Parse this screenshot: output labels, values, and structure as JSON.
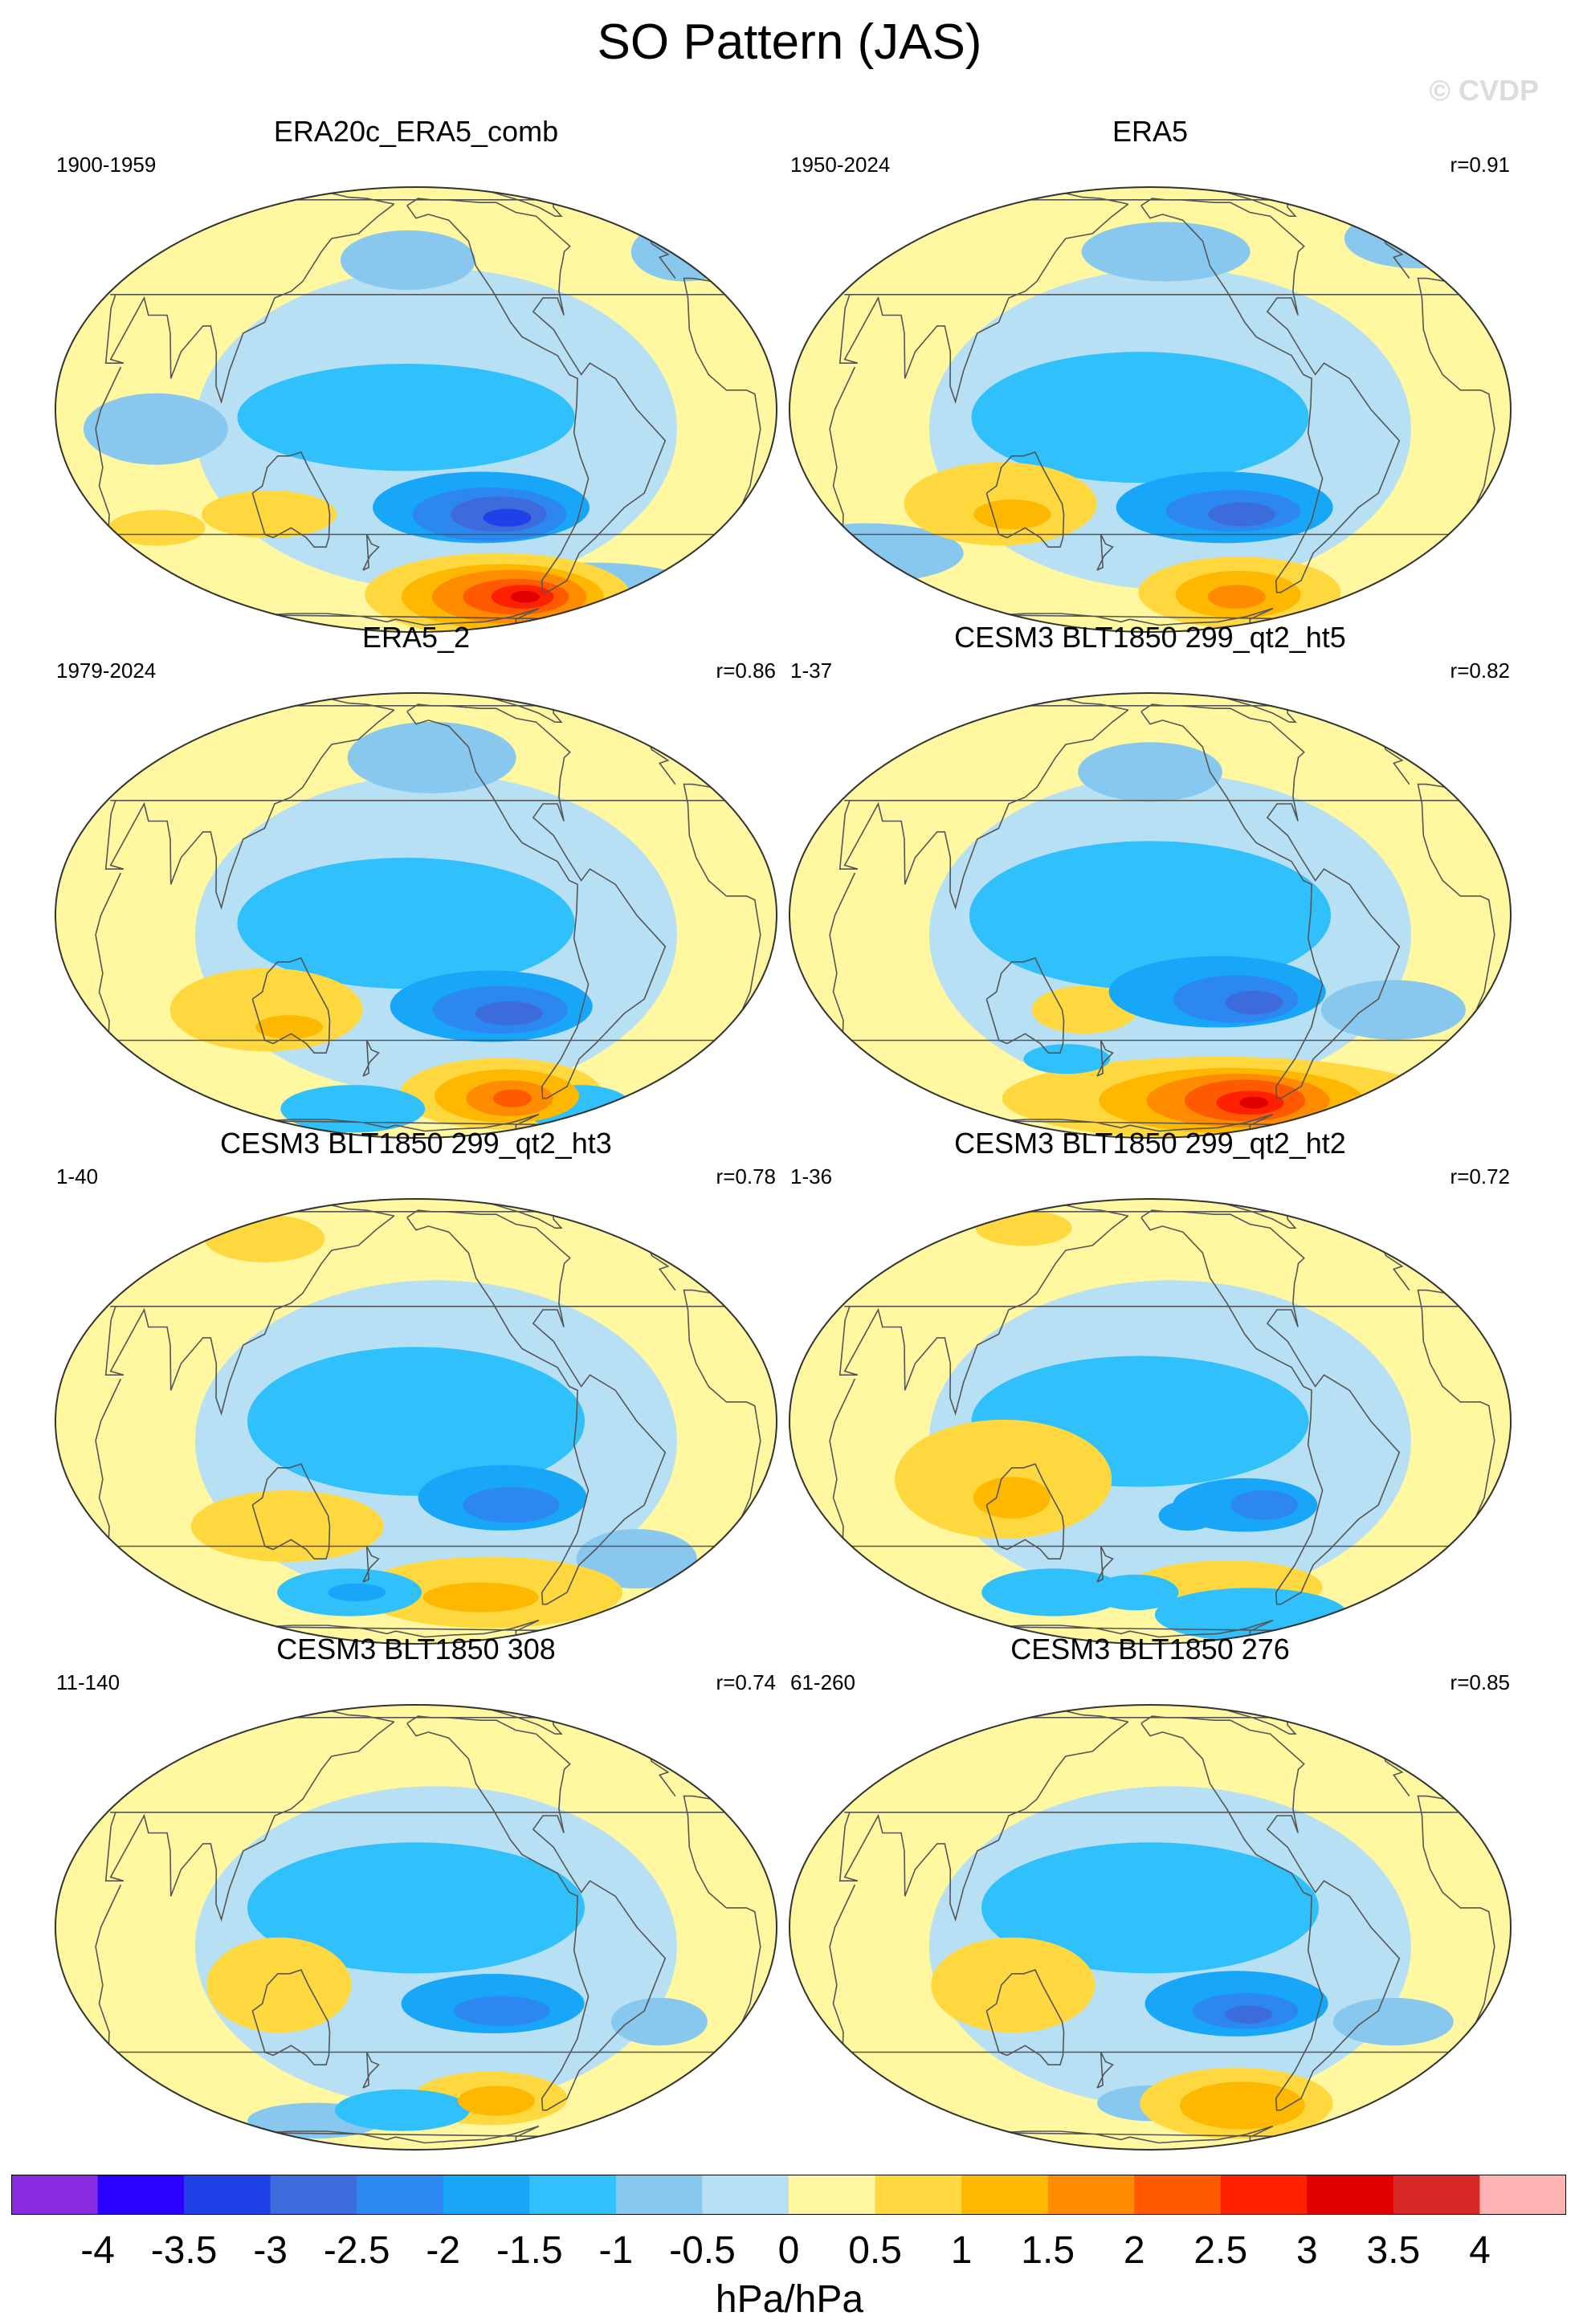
{
  "title": "SO Pattern (JAS)",
  "watermark": "© CVDP",
  "panels": [
    {
      "title": "ERA20c_ERA5_comb",
      "period": "1900-1959",
      "corr": "",
      "blobs": [
        {
          "lon": -165,
          "lat": -2,
          "rx": 70,
          "ry": 18,
          "c": "-1"
        },
        {
          "lon": -125,
          "lat": -26,
          "rx": 45,
          "ry": 12,
          "c": "-1.5"
        },
        {
          "lon": -120,
          "lat": -28,
          "rx": 32,
          "ry": 9,
          "c": "-2"
        },
        {
          "lon": -115,
          "lat": -28,
          "rx": 20,
          "ry": 6,
          "c": "-2.5"
        },
        {
          "lon": -110,
          "lat": -29,
          "rx": 10,
          "ry": 3,
          "c": "-3"
        },
        {
          "lon": -100,
          "lat": -56,
          "rx": 55,
          "ry": 14,
          "c": "1"
        },
        {
          "lon": -95,
          "lat": -57,
          "rx": 42,
          "ry": 11,
          "c": "1.5"
        },
        {
          "lon": -90,
          "lat": -57,
          "rx": 32,
          "ry": 9,
          "c": "2"
        },
        {
          "lon": -85,
          "lat": -57,
          "rx": 22,
          "ry": 6,
          "c": "2.5"
        },
        {
          "lon": -80,
          "lat": -57,
          "rx": 13,
          "ry": 4,
          "c": "3"
        },
        {
          "lon": -78,
          "lat": -57,
          "rx": 6,
          "ry": 2,
          "c": "3.5"
        },
        {
          "lon": 120,
          "lat": -28,
          "rx": 28,
          "ry": 8,
          "c": "1"
        },
        {
          "lon": 55,
          "lat": -32,
          "rx": 20,
          "ry": 6,
          "c": "1"
        },
        {
          "lon": -30,
          "lat": -55,
          "rx": 45,
          "ry": 10,
          "c": "-0.5"
        },
        {
          "lon": -165,
          "lat": 42,
          "rx": 28,
          "ry": 10,
          "c": "-0.5"
        },
        {
          "lon": 10,
          "lat": 45,
          "rx": 22,
          "ry": 10,
          "c": "-0.5"
        },
        {
          "lon": 70,
          "lat": -5,
          "rx": 30,
          "ry": 12,
          "c": "-0.5"
        }
      ]
    },
    {
      "title": "ERA5",
      "period": "1950-2024",
      "corr": "r=0.91",
      "blobs": [
        {
          "lon": -165,
          "lat": -2,
          "rx": 70,
          "ry": 22,
          "c": "-1"
        },
        {
          "lon": -120,
          "lat": -26,
          "rx": 45,
          "ry": 12,
          "c": "-1.5"
        },
        {
          "lon": -115,
          "lat": -27,
          "rx": 28,
          "ry": 7,
          "c": "-2"
        },
        {
          "lon": -110,
          "lat": -28,
          "rx": 14,
          "ry": 4,
          "c": "-2.5"
        },
        {
          "lon": -95,
          "lat": -55,
          "rx": 42,
          "ry": 12,
          "c": "1"
        },
        {
          "lon": -95,
          "lat": -56,
          "rx": 26,
          "ry": 8,
          "c": "1.5"
        },
        {
          "lon": -95,
          "lat": -57,
          "rx": 12,
          "ry": 4,
          "c": "2"
        },
        {
          "lon": 120,
          "lat": -25,
          "rx": 40,
          "ry": 14,
          "c": "1"
        },
        {
          "lon": 125,
          "lat": -28,
          "rx": 16,
          "ry": 5,
          "c": "1.5"
        },
        {
          "lon": 30,
          "lat": -40,
          "rx": 40,
          "ry": 10,
          "c": "-0.5"
        },
        {
          "lon": -150,
          "lat": 45,
          "rx": 35,
          "ry": 10,
          "c": "-0.5"
        },
        {
          "lon": 20,
          "lat": 50,
          "rx": 30,
          "ry": 10,
          "c": "-0.5"
        }
      ]
    },
    {
      "title": "ERA5_2",
      "period": "1979-2024",
      "corr": "r=0.86",
      "blobs": [
        {
          "lon": -165,
          "lat": -2,
          "rx": 70,
          "ry": 22,
          "c": "-1"
        },
        {
          "lon": -120,
          "lat": -24,
          "rx": 42,
          "ry": 12,
          "c": "-1.5"
        },
        {
          "lon": -115,
          "lat": -25,
          "rx": 28,
          "ry": 8,
          "c": "-2"
        },
        {
          "lon": -110,
          "lat": -26,
          "rx": 14,
          "ry": 4,
          "c": "-2.5"
        },
        {
          "lon": -100,
          "lat": -53,
          "rx": 42,
          "ry": 12,
          "c": "1"
        },
        {
          "lon": -95,
          "lat": -54,
          "rx": 30,
          "ry": 9,
          "c": "1.5"
        },
        {
          "lon": -92,
          "lat": -55,
          "rx": 18,
          "ry": 6,
          "c": "2"
        },
        {
          "lon": -90,
          "lat": -55,
          "rx": 8,
          "ry": 3,
          "c": "2.5"
        },
        {
          "lon": 120,
          "lat": -25,
          "rx": 40,
          "ry": 14,
          "c": "1"
        },
        {
          "lon": 130,
          "lat": -30,
          "rx": 14,
          "ry": 4,
          "c": "1.5"
        },
        {
          "lon": 150,
          "lat": -60,
          "rx": 30,
          "ry": 8,
          "c": "-1"
        },
        {
          "lon": -30,
          "lat": -60,
          "rx": 22,
          "ry": 8,
          "c": "-1"
        },
        {
          "lon": -150,
          "lat": 45,
          "rx": 35,
          "ry": 12,
          "c": "-0.5"
        }
      ]
    },
    {
      "title": "CESM3 BLT1850 299_qt2_ht5",
      "period": "1-37",
      "corr": "r=0.82",
      "blobs": [
        {
          "lon": -160,
          "lat": 0,
          "rx": 75,
          "ry": 25,
          "c": "-1"
        },
        {
          "lon": -125,
          "lat": -20,
          "rx": 45,
          "ry": 12,
          "c": "-1.5"
        },
        {
          "lon": -115,
          "lat": -22,
          "rx": 26,
          "ry": 8,
          "c": "-2"
        },
        {
          "lon": -105,
          "lat": -23,
          "rx": 12,
          "ry": 4,
          "c": "-2.5"
        },
        {
          "lon": -110,
          "lat": -55,
          "rx": 90,
          "ry": 14,
          "c": "1"
        },
        {
          "lon": -100,
          "lat": -56,
          "rx": 55,
          "ry": 11,
          "c": "1.5"
        },
        {
          "lon": -95,
          "lat": -56,
          "rx": 38,
          "ry": 9,
          "c": "2"
        },
        {
          "lon": -90,
          "lat": -56,
          "rx": 25,
          "ry": 7,
          "c": "2.5"
        },
        {
          "lon": -85,
          "lat": -57,
          "rx": 14,
          "ry": 4,
          "c": "3"
        },
        {
          "lon": -82,
          "lat": -57,
          "rx": 6,
          "ry": 2,
          "c": "3.5"
        },
        {
          "lon": 165,
          "lat": -25,
          "rx": 22,
          "ry": 8,
          "c": "1"
        },
        {
          "lon": 150,
          "lat": -40,
          "rx": 18,
          "ry": 5,
          "c": "-1"
        },
        {
          "lon": -30,
          "lat": -25,
          "rx": 30,
          "ry": 10,
          "c": "-0.5"
        },
        {
          "lon": -160,
          "lat": 40,
          "rx": 30,
          "ry": 10,
          "c": "-0.5"
        }
      ]
    },
    {
      "title": "CESM3 BLT1850 299_qt2_ht3",
      "period": "1-40",
      "corr": "r=0.78",
      "blobs": [
        {
          "lon": -160,
          "lat": 0,
          "rx": 70,
          "ry": 25,
          "c": "-1"
        },
        {
          "lon": -115,
          "lat": -20,
          "rx": 35,
          "ry": 11,
          "c": "-1.5"
        },
        {
          "lon": -110,
          "lat": -22,
          "rx": 20,
          "ry": 6,
          "c": "-2"
        },
        {
          "lon": -110,
          "lat": -50,
          "rx": 55,
          "ry": 12,
          "c": "1"
        },
        {
          "lon": -115,
          "lat": -52,
          "rx": 24,
          "ry": 5,
          "c": "1.5"
        },
        {
          "lon": 130,
          "lat": -28,
          "rx": 40,
          "ry": 12,
          "c": "1"
        },
        {
          "lon": 155,
          "lat": -50,
          "rx": 30,
          "ry": 8,
          "c": "-1"
        },
        {
          "lon": 160,
          "lat": -50,
          "rx": 12,
          "ry": 3,
          "c": "-1.5"
        },
        {
          "lon": -30,
          "lat": -38,
          "rx": 25,
          "ry": 10,
          "c": "-0.5"
        },
        {
          "lon": 90,
          "lat": 55,
          "rx": 25,
          "ry": 8,
          "c": "1"
        }
      ]
    },
    {
      "title": "CESM3 BLT1850 299_qt2_ht2",
      "period": "1-36",
      "corr": "r=0.72",
      "blobs": [
        {
          "lon": -165,
          "lat": 0,
          "rx": 70,
          "ry": 22,
          "c": "-1"
        },
        {
          "lon": -110,
          "lat": -22,
          "rx": 30,
          "ry": 9,
          "c": "-1.5"
        },
        {
          "lon": -100,
          "lat": -22,
          "rx": 14,
          "ry": 5,
          "c": "-2"
        },
        {
          "lon": -140,
          "lat": -25,
          "rx": 12,
          "ry": 5,
          "c": "-1.5"
        },
        {
          "lon": -110,
          "lat": -48,
          "rx": 40,
          "ry": 9,
          "c": "1"
        },
        {
          "lon": -80,
          "lat": -60,
          "rx": 40,
          "ry": 9,
          "c": "-1"
        },
        {
          "lon": 125,
          "lat": -15,
          "rx": 45,
          "ry": 20,
          "c": "1"
        },
        {
          "lon": 128,
          "lat": -20,
          "rx": 16,
          "ry": 7,
          "c": "1.5"
        },
        {
          "lon": 135,
          "lat": -50,
          "rx": 30,
          "ry": 8,
          "c": "-1"
        },
        {
          "lon": -170,
          "lat": -50,
          "rx": 18,
          "ry": 6,
          "c": "-1"
        },
        {
          "lon": 100,
          "lat": 60,
          "rx": 20,
          "ry": 6,
          "c": "1"
        }
      ]
    },
    {
      "title": "CESM3 BLT1850 308",
      "period": "11-140",
      "corr": "r=0.74",
      "blobs": [
        {
          "lon": -160,
          "lat": 5,
          "rx": 70,
          "ry": 22,
          "c": "-1"
        },
        {
          "lon": -120,
          "lat": -20,
          "rx": 38,
          "ry": 10,
          "c": "-1.5"
        },
        {
          "lon": -115,
          "lat": -22,
          "rx": 20,
          "ry": 5,
          "c": "-2"
        },
        {
          "lon": -110,
          "lat": -50,
          "rx": 32,
          "ry": 9,
          "c": "1"
        },
        {
          "lon": -105,
          "lat": -51,
          "rx": 16,
          "ry": 5,
          "c": "1.5"
        },
        {
          "lon": 130,
          "lat": -15,
          "rx": 30,
          "ry": 16,
          "c": "1"
        },
        {
          "lon": -170,
          "lat": -55,
          "rx": 28,
          "ry": 7,
          "c": "-1"
        },
        {
          "lon": 120,
          "lat": -60,
          "rx": 28,
          "ry": 6,
          "c": "-0.5"
        },
        {
          "lon": -30,
          "lat": -25,
          "rx": 20,
          "ry": 8,
          "c": "-0.5"
        }
      ]
    },
    {
      "title": "CESM3 BLT1850 276",
      "period": "61-260",
      "corr": "r=0.85",
      "blobs": [
        {
          "lon": -160,
          "lat": 5,
          "rx": 70,
          "ry": 22,
          "c": "-1"
        },
        {
          "lon": -115,
          "lat": -20,
          "rx": 38,
          "ry": 11,
          "c": "-1.5"
        },
        {
          "lon": -110,
          "lat": -22,
          "rx": 22,
          "ry": 6,
          "c": "-2"
        },
        {
          "lon": -108,
          "lat": -23,
          "rx": 10,
          "ry": 3,
          "c": "-2.5"
        },
        {
          "lon": -100,
          "lat": -52,
          "rx": 40,
          "ry": 12,
          "c": "1"
        },
        {
          "lon": -95,
          "lat": -53,
          "rx": 26,
          "ry": 8,
          "c": "1.5"
        },
        {
          "lon": 130,
          "lat": -15,
          "rx": 34,
          "ry": 16,
          "c": "1"
        },
        {
          "lon": -160,
          "lat": -52,
          "rx": 22,
          "ry": 6,
          "c": "-0.5"
        },
        {
          "lon": -30,
          "lat": -25,
          "rx": 25,
          "ry": 8,
          "c": "-0.5"
        }
      ]
    }
  ],
  "colorbar": {
    "labels": [
      "-4",
      "-3.5",
      "-3",
      "-2.5",
      "-2",
      "-1.5",
      "-1",
      "-0.5",
      "0",
      "0.5",
      "1",
      "1.5",
      "2",
      "2.5",
      "3",
      "3.5",
      "4"
    ],
    "colors": [
      "#8a2be2",
      "#2b00ff",
      "#2040e8",
      "#3c6cdc",
      "#2c88f0",
      "#18a6f8",
      "#30c0fc",
      "#88c8ee",
      "#b8e0f4",
      "#fff8a0",
      "#ffd840",
      "#ffb800",
      "#ff8c00",
      "#ff5a00",
      "#ff2000",
      "#e00000",
      "#d82828",
      "#ffb4b4"
    ],
    "units": "hPa/hPa"
  },
  "colors": {
    "land_outline": "#555555",
    "globe_border": "#333333",
    "background_neg": "#b8e0f4",
    "background_pos": "#fff8a0",
    "levels": {
      "-3.5": "#2b00ff",
      "-3": "#2040e8",
      "-2.5": "#3c6cdc",
      "-2": "#2c88f0",
      "-1.5": "#18a6f8",
      "-1": "#30c0fc",
      "-0.5": "#88c8ee",
      "1": "#ffd840",
      "1.5": "#ffb800",
      "2": "#ff8c00",
      "2.5": "#ff5a00",
      "3": "#ff2000",
      "3.5": "#e00000"
    }
  }
}
